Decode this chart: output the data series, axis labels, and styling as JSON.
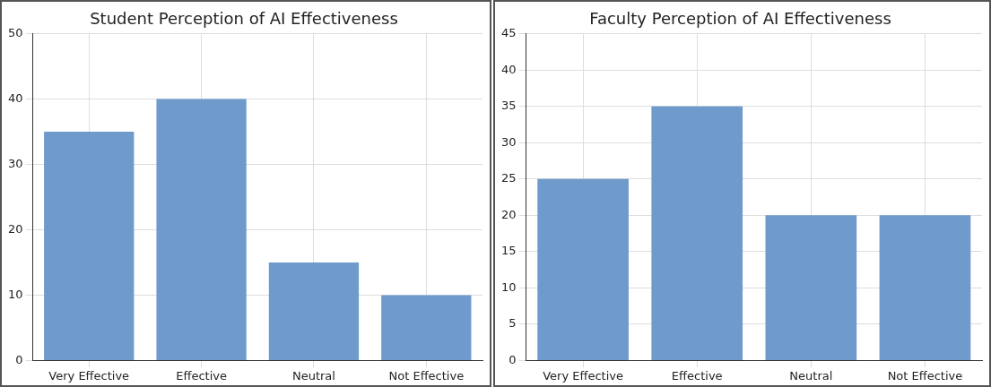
{
  "chart_data": [
    {
      "type": "bar",
      "title": "Student Perception of AI Effectiveness",
      "categories": [
        "Very Effective",
        "Effective",
        "Neutral",
        "Not Effective"
      ],
      "values": [
        35,
        40,
        15,
        10
      ],
      "color": "#6f9bcc",
      "ylim": [
        0,
        50
      ],
      "yticks": [
        0,
        10,
        20,
        30,
        40,
        50
      ],
      "grid": true
    },
    {
      "type": "bar",
      "title": "Faculty Perception of AI Effectiveness",
      "categories": [
        "Very Effective",
        "Effective",
        "Neutral",
        "Not Effective"
      ],
      "values": [
        25,
        35,
        20,
        20
      ],
      "color": "#6f9bcc",
      "ylim": [
        0,
        45
      ],
      "yticks": [
        0,
        5,
        10,
        15,
        20,
        25,
        30,
        35,
        40,
        45
      ],
      "grid": true
    }
  ]
}
